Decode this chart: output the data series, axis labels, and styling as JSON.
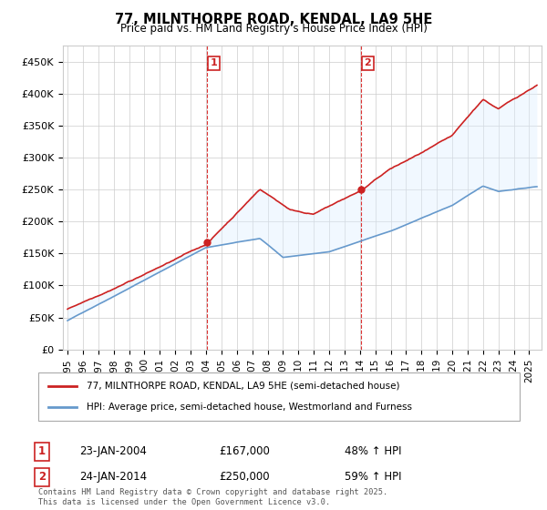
{
  "title": "77, MILNTHORPE ROAD, KENDAL, LA9 5HE",
  "subtitle": "Price paid vs. HM Land Registry's House Price Index (HPI)",
  "ylabel_ticks": [
    "£0",
    "£50K",
    "£100K",
    "£150K",
    "£200K",
    "£250K",
    "£300K",
    "£350K",
    "£400K",
    "£450K"
  ],
  "ytick_values": [
    0,
    50000,
    100000,
    150000,
    200000,
    250000,
    300000,
    350000,
    400000,
    450000
  ],
  "ylim": [
    0,
    475000
  ],
  "xlim_start": 1994.7,
  "xlim_end": 2025.8,
  "xtick_years": [
    1995,
    1996,
    1997,
    1998,
    1999,
    2000,
    2001,
    2002,
    2003,
    2004,
    2005,
    2006,
    2007,
    2008,
    2009,
    2010,
    2011,
    2012,
    2013,
    2014,
    2015,
    2016,
    2017,
    2018,
    2019,
    2020,
    2021,
    2022,
    2023,
    2024,
    2025
  ],
  "sale1_x": 2004.07,
  "sale1_y": 167000,
  "sale2_x": 2014.07,
  "sale2_y": 250000,
  "legend_line1": "77, MILNTHORPE ROAD, KENDAL, LA9 5HE (semi-detached house)",
  "legend_line2": "HPI: Average price, semi-detached house, Westmorland and Furness",
  "annotation1_label": "1",
  "annotation1_date": "23-JAN-2004",
  "annotation1_price": "£167,000",
  "annotation1_pct": "48% ↑ HPI",
  "annotation2_label": "2",
  "annotation2_date": "24-JAN-2014",
  "annotation2_price": "£250,000",
  "annotation2_pct": "59% ↑ HPI",
  "footnote": "Contains HM Land Registry data © Crown copyright and database right 2025.\nThis data is licensed under the Open Government Licence v3.0.",
  "hpi_color": "#6699cc",
  "price_color": "#cc2222",
  "shade_color": "#ddeeff",
  "vline_color": "#dd3333",
  "bg_color": "#ffffff",
  "grid_color": "#cccccc"
}
